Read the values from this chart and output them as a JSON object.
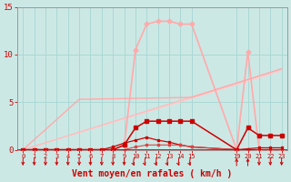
{
  "bg": "#cce8e5",
  "grid_color": "#aad8d4",
  "xlabel": "Vent moyen/en rafales ( km/h )",
  "xlim": [
    -0.5,
    23.5
  ],
  "ylim": [
    0,
    15
  ],
  "yticks": [
    0,
    5,
    10,
    15
  ],
  "xtick_vals": [
    0,
    1,
    2,
    3,
    4,
    5,
    6,
    7,
    8,
    9,
    10,
    11,
    12,
    13,
    14,
    15,
    19,
    20,
    21,
    22,
    23
  ],
  "lines": [
    {
      "x": [
        0,
        23
      ],
      "y": [
        0,
        8.3
      ],
      "c": "#ffcccc",
      "lw": 0.9,
      "mk": "None",
      "ms": 0
    },
    {
      "x": [
        0,
        23
      ],
      "y": [
        0,
        8.5
      ],
      "c": "#ffbbbb",
      "lw": 0.9,
      "mk": "None",
      "ms": 0
    },
    {
      "x": [
        0,
        5,
        15,
        23
      ],
      "y": [
        0,
        5.3,
        5.5,
        8.5
      ],
      "c": "#ffaaaa",
      "lw": 1.0,
      "mk": "None",
      "ms": 0
    },
    {
      "x": [
        0,
        1,
        2,
        3,
        4,
        5,
        6,
        7,
        8,
        9,
        10,
        11,
        12,
        13,
        14,
        15,
        19,
        20,
        21,
        22,
        23
      ],
      "y": [
        0,
        0,
        0,
        0,
        0,
        0,
        0,
        0,
        0,
        0.4,
        10.5,
        13.2,
        13.5,
        13.5,
        13.2,
        13.2,
        0,
        10.3,
        0,
        0,
        0
      ],
      "c": "#ffaaaa",
      "lw": 1.2,
      "mk": "D",
      "ms": 2.5
    },
    {
      "x": [
        0,
        1,
        2,
        3,
        4,
        5,
        6,
        7,
        8,
        9,
        10,
        11,
        12,
        13,
        14,
        15,
        19,
        20,
        21,
        22,
        23
      ],
      "y": [
        0,
        0,
        0,
        0,
        0,
        0,
        0,
        0,
        0,
        0.5,
        2.3,
        3.0,
        3.0,
        3.0,
        3.0,
        3.0,
        0,
        2.3,
        1.5,
        1.5,
        1.5
      ],
      "c": "#cc0000",
      "lw": 1.1,
      "mk": "s",
      "ms": 2.8
    },
    {
      "x": [
        0,
        1,
        2,
        3,
        4,
        5,
        6,
        7,
        8,
        9,
        10,
        11,
        12,
        13,
        14,
        15,
        19,
        20,
        21,
        22,
        23
      ],
      "y": [
        0,
        0,
        0,
        0,
        0,
        0,
        0,
        0,
        0.3,
        0.7,
        1.0,
        1.3,
        1.0,
        0.8,
        0.5,
        0.3,
        0,
        0.1,
        0.2,
        0.2,
        0.2
      ],
      "c": "#cc0000",
      "lw": 0.9,
      "mk": "s",
      "ms": 2.0
    },
    {
      "x": [
        0,
        1,
        2,
        3,
        4,
        5,
        6,
        7,
        8,
        9,
        10,
        11,
        12,
        13,
        14,
        15,
        19,
        20,
        21,
        22,
        23
      ],
      "y": [
        0,
        0,
        0,
        0,
        0,
        0,
        0,
        0,
        0,
        0,
        0.3,
        0.5,
        0.5,
        0.5,
        0.5,
        0.3,
        0,
        0,
        0,
        0,
        0
      ],
      "c": "#dd4444",
      "lw": 0.8,
      "mk": "s",
      "ms": 1.8
    }
  ],
  "down_arrows": [
    0,
    1,
    2,
    3,
    4,
    5,
    6,
    7,
    8,
    9,
    21,
    22,
    23
  ],
  "curl_arrows": [
    10,
    11,
    12,
    13,
    14,
    15
  ],
  "up_arrows": [
    19,
    20
  ]
}
